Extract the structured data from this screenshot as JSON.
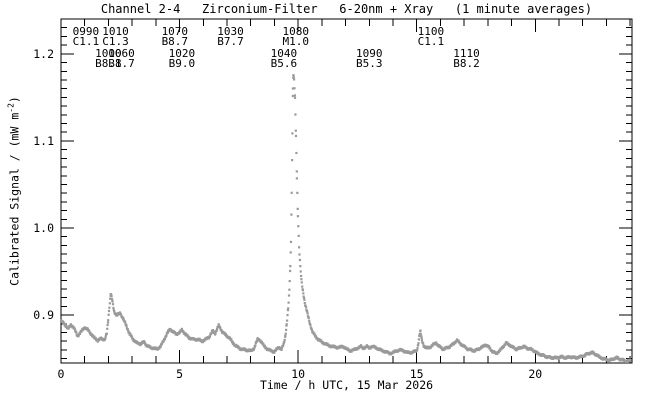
{
  "title": "Channel 2-4   Zirconium-Filter   6-20nm + Xray   (1 minute averages)",
  "xlabel": "Time / h UTC, 15 Mar 2026",
  "ylabel": {
    "pre": "Calibrated Signal / (mW m",
    "sup": "-2",
    "post": ")"
  },
  "colors": {
    "curve": "#9a9a9a",
    "axis": "#000000",
    "background": "#ffffff",
    "text": "#000000"
  },
  "annotations": {
    "row1": [
      {
        "time": 1.05,
        "flare_id": "0990",
        "class": "C1.1"
      },
      {
        "time": 2.3,
        "flare_id": "1010",
        "class": "C1.3"
      },
      {
        "time": 4.8,
        "flare_id": "1070",
        "class": "B8.7"
      },
      {
        "time": 7.15,
        "flare_id": "1030",
        "class": "B7.7"
      },
      {
        "time": 9.9,
        "flare_id": "1080",
        "class": "M1.0"
      },
      {
        "time": 15.6,
        "flare_id": "1100",
        "class": "C1.1"
      }
    ],
    "row2": [
      {
        "time": 2.0,
        "flare_id": "1000",
        "class": "B8.8"
      },
      {
        "time": 2.55,
        "flare_id": "1060",
        "class": "B1.7"
      },
      {
        "time": 5.1,
        "flare_id": "1020",
        "class": "B9.0"
      },
      {
        "time": 9.4,
        "flare_id": "1040",
        "class": "B5.6"
      },
      {
        "time": 13.0,
        "flare_id": "1090",
        "class": "B5.3"
      },
      {
        "time": 17.1,
        "flare_id": "1110",
        "class": "B8.2"
      }
    ]
  },
  "chart_data": {
    "type": "scatter",
    "title": "Channel 2-4   Zirconium-Filter   6-20nm + Xray   (1 minute averages)",
    "xlabel": "Time / h UTC, 15 Mar 2026",
    "ylabel": "Calibrated Signal / (mW m^-2)",
    "cadence": "1 minute averages",
    "xlim": [
      0,
      24.08
    ],
    "ylim": [
      0.845,
      1.24
    ],
    "x_major_ticks": [
      0,
      5,
      10,
      15,
      20
    ],
    "x_minor_step": 1,
    "y_major_ticks": [
      0.9,
      1.0,
      1.1,
      1.2
    ],
    "y_minor_step": 0.01,
    "grid": false,
    "legend": "none",
    "series": [
      {
        "name": "Channel 2-4 Zirconium-Filter 6-20nm + Xray calibrated signal",
        "points": [
          [
            0.0,
            0.893
          ],
          [
            0.1,
            0.891
          ],
          [
            0.2,
            0.888
          ],
          [
            0.3,
            0.884
          ],
          [
            0.42,
            0.889
          ],
          [
            0.55,
            0.885
          ],
          [
            0.7,
            0.876
          ],
          [
            0.85,
            0.881
          ],
          [
            1.0,
            0.886
          ],
          [
            1.1,
            0.884
          ],
          [
            1.25,
            0.879
          ],
          [
            1.4,
            0.874
          ],
          [
            1.55,
            0.871
          ],
          [
            1.7,
            0.873
          ],
          [
            1.85,
            0.872
          ],
          [
            1.93,
            0.879
          ],
          [
            1.99,
            0.895
          ],
          [
            2.04,
            0.91
          ],
          [
            2.1,
            0.925
          ],
          [
            2.16,
            0.917
          ],
          [
            2.24,
            0.904
          ],
          [
            2.35,
            0.9
          ],
          [
            2.5,
            0.902
          ],
          [
            2.62,
            0.896
          ],
          [
            2.75,
            0.888
          ],
          [
            2.9,
            0.878
          ],
          [
            3.05,
            0.872
          ],
          [
            3.2,
            0.868
          ],
          [
            3.35,
            0.867
          ],
          [
            3.5,
            0.869
          ],
          [
            3.62,
            0.865
          ],
          [
            3.75,
            0.863
          ],
          [
            3.9,
            0.862
          ],
          [
            4.05,
            0.861
          ],
          [
            4.2,
            0.864
          ],
          [
            4.35,
            0.872
          ],
          [
            4.5,
            0.88
          ],
          [
            4.6,
            0.884
          ],
          [
            4.72,
            0.881
          ],
          [
            4.85,
            0.878
          ],
          [
            5.0,
            0.88
          ],
          [
            5.1,
            0.883
          ],
          [
            5.25,
            0.878
          ],
          [
            5.4,
            0.874
          ],
          [
            5.6,
            0.872
          ],
          [
            5.8,
            0.872
          ],
          [
            5.95,
            0.87
          ],
          [
            6.1,
            0.872
          ],
          [
            6.25,
            0.875
          ],
          [
            6.4,
            0.882
          ],
          [
            6.5,
            0.879
          ],
          [
            6.65,
            0.888
          ],
          [
            6.8,
            0.881
          ],
          [
            6.95,
            0.877
          ],
          [
            7.1,
            0.874
          ],
          [
            7.25,
            0.868
          ],
          [
            7.4,
            0.864
          ],
          [
            7.6,
            0.861
          ],
          [
            7.8,
            0.86
          ],
          [
            8.0,
            0.859
          ],
          [
            8.15,
            0.862
          ],
          [
            8.3,
            0.873
          ],
          [
            8.4,
            0.871
          ],
          [
            8.55,
            0.865
          ],
          [
            8.7,
            0.861
          ],
          [
            8.85,
            0.859
          ],
          [
            9.0,
            0.858
          ],
          [
            9.1,
            0.861
          ],
          [
            9.2,
            0.863
          ],
          [
            9.3,
            0.861
          ],
          [
            9.4,
            0.867
          ],
          [
            9.46,
            0.876
          ],
          [
            9.52,
            0.89
          ],
          [
            9.58,
            0.908
          ],
          [
            9.63,
            0.928
          ],
          [
            9.67,
            0.955
          ],
          [
            9.7,
            0.985
          ],
          [
            9.73,
            1.04
          ],
          [
            9.76,
            1.11
          ],
          [
            9.78,
            1.16
          ],
          [
            9.8,
            1.176
          ],
          [
            9.83,
            1.17
          ],
          [
            9.87,
            1.148
          ],
          [
            9.91,
            1.105
          ],
          [
            9.95,
            1.058
          ],
          [
            9.99,
            1.015
          ],
          [
            10.04,
            0.978
          ],
          [
            10.09,
            0.955
          ],
          [
            10.14,
            0.94
          ],
          [
            10.2,
            0.928
          ],
          [
            10.3,
            0.912
          ],
          [
            10.4,
            0.901
          ],
          [
            10.5,
            0.89
          ],
          [
            10.6,
            0.881
          ],
          [
            10.72,
            0.876
          ],
          [
            10.85,
            0.872
          ],
          [
            11.0,
            0.869
          ],
          [
            11.15,
            0.867
          ],
          [
            11.3,
            0.865
          ],
          [
            11.45,
            0.864
          ],
          [
            11.6,
            0.863
          ],
          [
            11.75,
            0.863
          ],
          [
            11.9,
            0.864
          ],
          [
            12.05,
            0.861
          ],
          [
            12.2,
            0.859
          ],
          [
            12.35,
            0.86
          ],
          [
            12.5,
            0.862
          ],
          [
            12.65,
            0.864
          ],
          [
            12.75,
            0.862
          ],
          [
            12.9,
            0.864
          ],
          [
            13.0,
            0.862
          ],
          [
            13.1,
            0.864
          ],
          [
            13.25,
            0.863
          ],
          [
            13.4,
            0.861
          ],
          [
            13.55,
            0.859
          ],
          [
            13.7,
            0.858
          ],
          [
            13.85,
            0.856
          ],
          [
            14.0,
            0.857
          ],
          [
            14.15,
            0.859
          ],
          [
            14.3,
            0.86
          ],
          [
            14.45,
            0.859
          ],
          [
            14.6,
            0.857
          ],
          [
            14.75,
            0.857
          ],
          [
            14.9,
            0.858
          ],
          [
            15.0,
            0.859
          ],
          [
            15.06,
            0.866
          ],
          [
            15.12,
            0.877
          ],
          [
            15.16,
            0.881
          ],
          [
            15.22,
            0.871
          ],
          [
            15.3,
            0.865
          ],
          [
            15.4,
            0.862
          ],
          [
            15.55,
            0.863
          ],
          [
            15.7,
            0.866
          ],
          [
            15.82,
            0.868
          ],
          [
            15.95,
            0.864
          ],
          [
            16.1,
            0.861
          ],
          [
            16.25,
            0.862
          ],
          [
            16.4,
            0.864
          ],
          [
            16.55,
            0.867
          ],
          [
            16.7,
            0.871
          ],
          [
            16.85,
            0.867
          ],
          [
            17.0,
            0.864
          ],
          [
            17.15,
            0.861
          ],
          [
            17.3,
            0.86
          ],
          [
            17.45,
            0.859
          ],
          [
            17.6,
            0.861
          ],
          [
            17.75,
            0.863
          ],
          [
            17.9,
            0.866
          ],
          [
            18.05,
            0.863
          ],
          [
            18.2,
            0.858
          ],
          [
            18.35,
            0.856
          ],
          [
            18.5,
            0.859
          ],
          [
            18.65,
            0.864
          ],
          [
            18.78,
            0.868
          ],
          [
            18.9,
            0.866
          ],
          [
            19.05,
            0.863
          ],
          [
            19.2,
            0.861
          ],
          [
            19.35,
            0.862
          ],
          [
            19.5,
            0.864
          ],
          [
            19.65,
            0.862
          ],
          [
            19.8,
            0.861
          ],
          [
            19.95,
            0.859
          ],
          [
            20.1,
            0.856
          ],
          [
            20.3,
            0.854
          ],
          [
            20.5,
            0.852
          ],
          [
            20.7,
            0.851
          ],
          [
            20.9,
            0.851
          ],
          [
            21.1,
            0.852
          ],
          [
            21.3,
            0.851
          ],
          [
            21.5,
            0.852
          ],
          [
            21.7,
            0.851
          ],
          [
            21.9,
            0.852
          ],
          [
            22.1,
            0.854
          ],
          [
            22.25,
            0.856
          ],
          [
            22.4,
            0.857
          ],
          [
            22.55,
            0.855
          ],
          [
            22.7,
            0.852
          ],
          [
            22.85,
            0.85
          ],
          [
            23.0,
            0.849
          ],
          [
            23.15,
            0.848
          ],
          [
            23.3,
            0.85
          ],
          [
            23.45,
            0.851
          ],
          [
            23.6,
            0.849
          ],
          [
            23.75,
            0.848
          ],
          [
            23.9,
            0.847
          ],
          [
            24.0,
            0.848
          ]
        ]
      }
    ]
  }
}
